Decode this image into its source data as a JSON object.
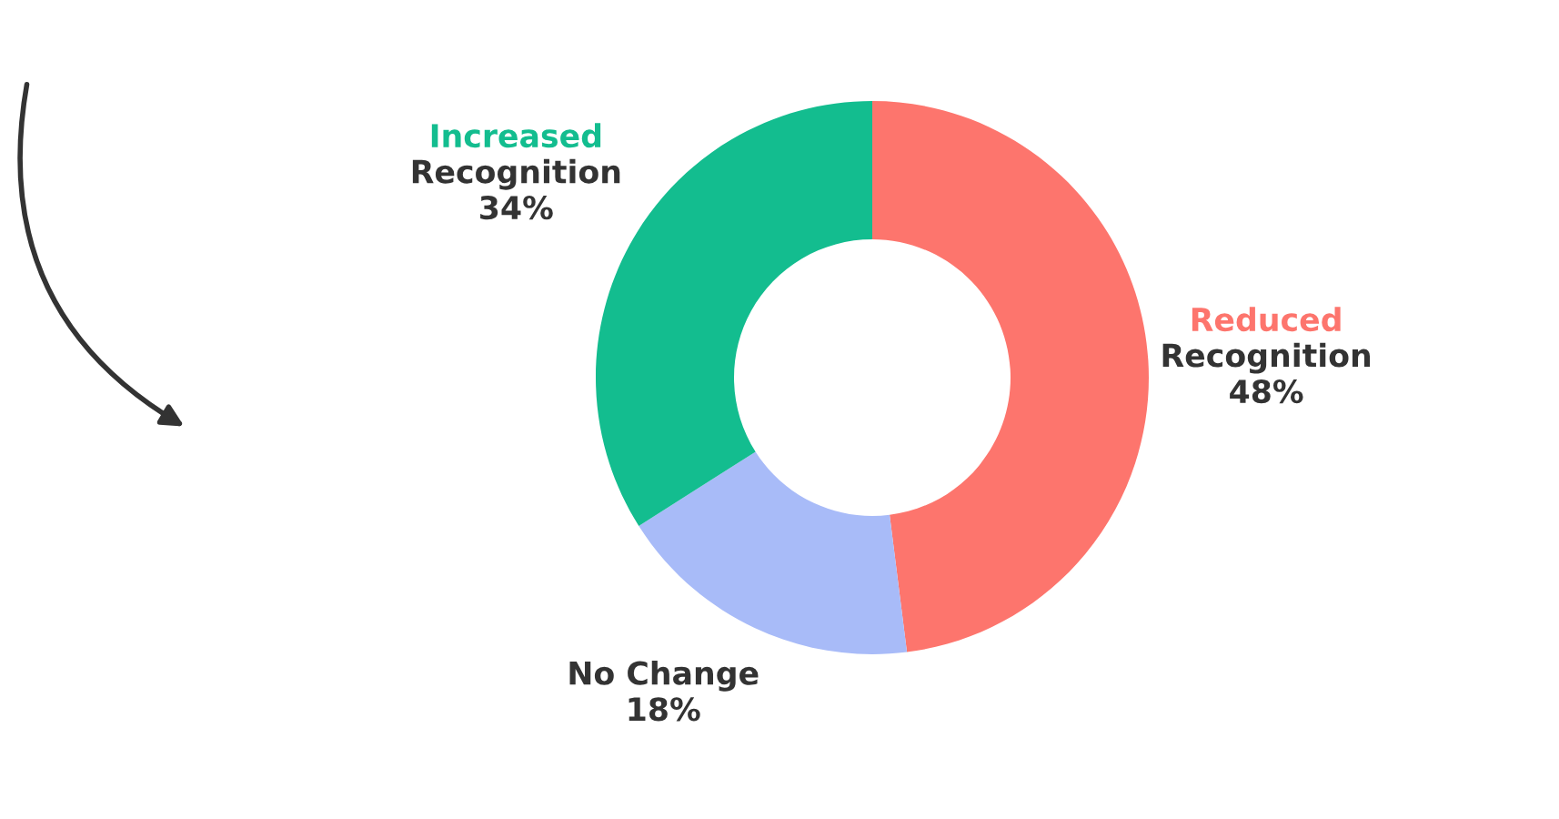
{
  "chart_data": {
    "type": "donut",
    "categories": [
      "Reduced\nRecognition",
      "No Change",
      "Increased\nRecognition"
    ],
    "values": [
      48,
      18,
      34
    ],
    "value_labels": [
      "48%",
      "18%",
      "34%"
    ],
    "colors": [
      "#fd756d",
      "#a8bbf8",
      "#13bd8f"
    ]
  }
}
